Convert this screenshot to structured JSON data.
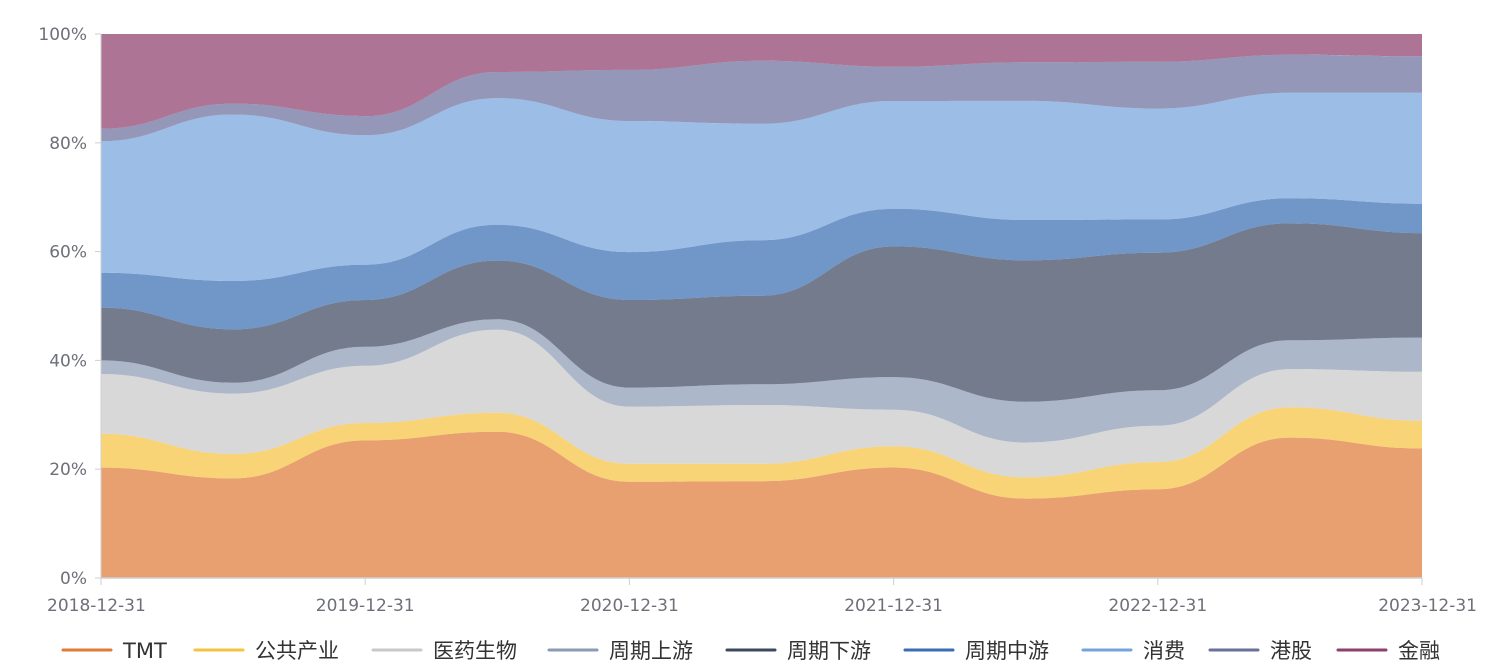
{
  "chart_data": {
    "type": "area",
    "stacked": true,
    "normalized": true,
    "x": [
      "2018-12-31",
      "2019-06-30",
      "2019-12-31",
      "2020-06-30",
      "2020-12-31",
      "2021-06-30",
      "2021-12-31",
      "2022-06-30",
      "2022-12-31",
      "2023-06-30",
      "2023-12-31"
    ],
    "x_tick_labels": [
      "2018-12-31",
      "2019-12-31",
      "2020-12-31",
      "2021-12-31",
      "2022-12-31",
      "2023-12-31"
    ],
    "y_tick_labels": [
      "0%",
      "20%",
      "40%",
      "60%",
      "80%",
      "100%"
    ],
    "ylim": [
      0,
      100
    ],
    "y_unit": "%",
    "grid": false,
    "legend_position": "bottom",
    "series": [
      {
        "name": "TMT",
        "color": "#e07b39",
        "values": [
          20.3,
          18.3,
          25.3,
          26.9,
          17.7,
          17.8,
          20.3,
          14.6,
          16.3,
          25.8,
          23.8
        ]
      },
      {
        "name": "公共产业",
        "color": "#f5c342",
        "values": [
          6.2,
          4.5,
          3.2,
          3.5,
          3.3,
          3.2,
          3.9,
          3.9,
          5.0,
          5.6,
          5.1
        ]
      },
      {
        "name": "医药生物",
        "color": "#c9c9c9",
        "values": [
          11.0,
          11.1,
          10.5,
          15.3,
          10.5,
          10.8,
          6.7,
          6.4,
          6.7,
          7.0,
          9.0
        ]
      },
      {
        "name": "周期上游",
        "color": "#8c9bb5",
        "values": [
          2.5,
          2.0,
          3.5,
          1.9,
          3.5,
          3.8,
          6.0,
          7.5,
          6.5,
          5.3,
          6.3
        ]
      },
      {
        "name": "周期下游",
        "color": "#3d4861",
        "values": [
          9.7,
          9.8,
          8.6,
          10.8,
          16.1,
          16.3,
          24.0,
          26.0,
          25.3,
          21.5,
          19.2
        ]
      },
      {
        "name": "周期中游",
        "color": "#3a6db3",
        "values": [
          6.4,
          8.9,
          6.5,
          6.6,
          8.8,
          10.2,
          6.9,
          7.4,
          6.1,
          4.6,
          5.4
        ]
      },
      {
        "name": "消费",
        "color": "#74a4dc",
        "values": [
          24.2,
          30.6,
          23.8,
          23.3,
          24.1,
          21.4,
          19.8,
          21.9,
          20.4,
          19.4,
          20.4
        ]
      },
      {
        "name": "港股",
        "color": "#6b6f9b",
        "values": [
          2.3,
          2.0,
          3.5,
          4.8,
          9.4,
          11.6,
          6.3,
          7.1,
          8.6,
          7.0,
          6.7
        ]
      },
      {
        "name": "金融",
        "color": "#8e3f6c",
        "values": [
          17.4,
          12.8,
          15.1,
          7.0,
          6.6,
          4.9,
          6.0,
          5.2,
          5.1,
          3.8,
          4.1
        ]
      }
    ]
  }
}
